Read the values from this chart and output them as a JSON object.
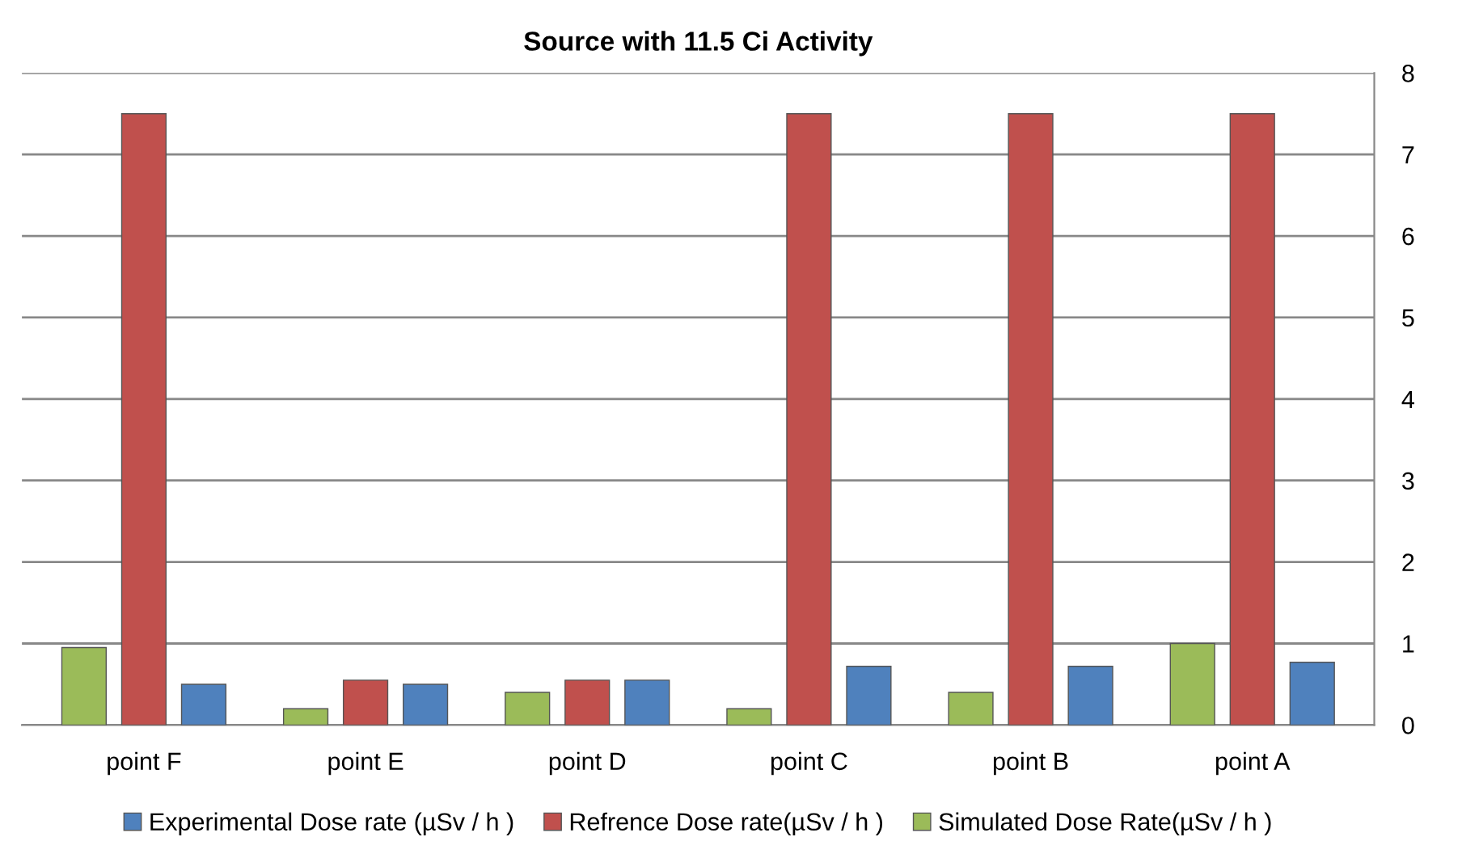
{
  "chart_data": {
    "type": "bar",
    "title": "Source with 11.5 Ci Activity",
    "categories": [
      "point F",
      "point E",
      "point D",
      "point C",
      "point B",
      "point A"
    ],
    "series": [
      {
        "name": "Simulated Dose Rate(µSv / h )",
        "color": "#9bbb59",
        "values": [
          0.95,
          0.2,
          0.4,
          0.2,
          0.4,
          1.0
        ]
      },
      {
        "name": "Refrence Dose rate(µSv / h )",
        "color": "#c0504d",
        "values": [
          7.5,
          0.55,
          0.55,
          7.5,
          7.5,
          7.5
        ]
      },
      {
        "name": "Experimental Dose rate (µSv / h )",
        "color": "#4f81bd",
        "values": [
          0.5,
          0.5,
          0.55,
          0.72,
          0.72,
          0.77
        ]
      }
    ],
    "ylim": [
      0,
      8
    ],
    "yticks": [
      0,
      1,
      2,
      3,
      4,
      5,
      6,
      7,
      8
    ],
    "grid": "y",
    "legend": "bottom"
  }
}
